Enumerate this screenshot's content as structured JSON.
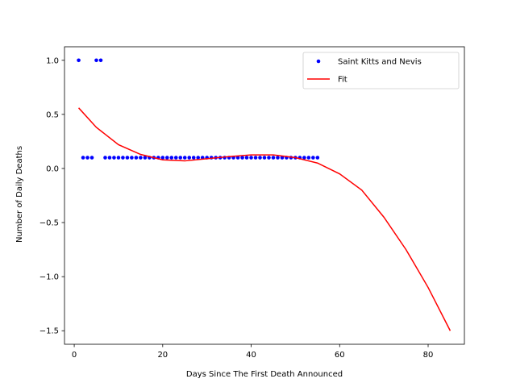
{
  "chart_data": {
    "type": "scatter",
    "title": "",
    "xlabel": "Days Since The First Death Announced",
    "ylabel": "Number of Daily Deaths",
    "xlim": [
      -2.2,
      88.2
    ],
    "ylim": [
      -1.625,
      1.125
    ],
    "xticks": [
      0,
      20,
      40,
      60,
      80
    ],
    "yticks": [
      -1.5,
      -1.0,
      -0.5,
      0.0,
      0.5,
      1.0
    ],
    "ytick_labels": [
      "−1.5",
      "−1.0",
      "−0.5",
      "0.0",
      "0.5",
      "1.0"
    ],
    "grid": false,
    "legend_position": "top-right",
    "series": [
      {
        "name": "Saint Kitts and Nevis",
        "kind": "scatter",
        "color": "#0000ff",
        "x": [
          1,
          2,
          3,
          4,
          5,
          6,
          7,
          8,
          9,
          10,
          11,
          12,
          13,
          14,
          15,
          16,
          17,
          18,
          19,
          20,
          21,
          22,
          23,
          24,
          25,
          26,
          27,
          28,
          29,
          30,
          31,
          32,
          33,
          34,
          35,
          36,
          37,
          38,
          39,
          40,
          41,
          42,
          43,
          44,
          45,
          46,
          47,
          48,
          49,
          50,
          51,
          52,
          53,
          54,
          55
        ],
        "y": [
          1,
          0.1,
          0.1,
          0.1,
          1,
          1,
          0.1,
          0.1,
          0.1,
          0.1,
          0.1,
          0.1,
          0.1,
          0.1,
          0.1,
          0.1,
          0.1,
          0.1,
          0.1,
          0.1,
          0.1,
          0.1,
          0.1,
          0.1,
          0.1,
          0.1,
          0.1,
          0.1,
          0.1,
          0.1,
          0.1,
          0.1,
          0.1,
          0.1,
          0.1,
          0.1,
          0.1,
          0.1,
          0.1,
          0.1,
          0.1,
          0.1,
          0.1,
          0.1,
          0.1,
          0.1,
          0.1,
          0.1,
          0.1,
          0.1,
          0.1,
          0.1,
          0.1,
          0.1,
          0.1
        ]
      },
      {
        "name": "Fit",
        "kind": "line",
        "color": "#ff0000",
        "x": [
          1,
          5,
          10,
          15,
          20,
          25,
          30,
          35,
          40,
          45,
          50,
          55,
          60,
          65,
          70,
          75,
          80,
          85
        ],
        "y": [
          0.56,
          0.38,
          0.22,
          0.13,
          0.08,
          0.07,
          0.09,
          0.11,
          0.125,
          0.125,
          0.1,
          0.05,
          -0.05,
          -0.2,
          -0.45,
          -0.75,
          -1.1,
          -1.5
        ]
      }
    ]
  }
}
